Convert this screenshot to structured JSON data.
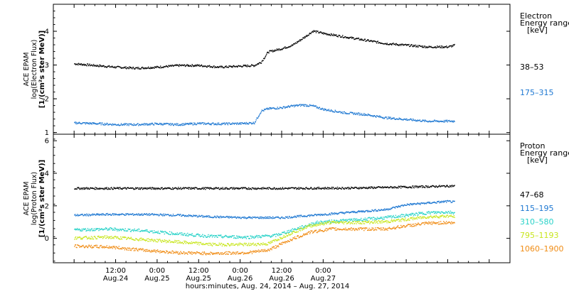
{
  "chart_data": [
    {
      "type": "scatter",
      "ylabel_lines": [
        "ACE EPAM",
        "log(Electron Flux)",
        "[1/(cm²s ster MeV)]"
      ],
      "legend_title": [
        "Electron",
        "Energy range",
        "[keV]"
      ],
      "ylim": [
        0.95,
        4.8
      ],
      "yticks": [
        1,
        2,
        3,
        4
      ],
      "series": [
        {
          "name": "38–53",
          "color": "#000000",
          "points": [
            [
              0,
              3.05
            ],
            [
              6,
              3.0
            ],
            [
              12,
              2.95
            ],
            [
              18,
              2.92
            ],
            [
              24,
              2.95
            ],
            [
              30,
              3.0
            ],
            [
              36,
              3.0
            ],
            [
              42,
              2.95
            ],
            [
              48,
              2.98
            ],
            [
              52,
              3.0
            ],
            [
              54,
              3.1
            ],
            [
              56,
              3.4
            ],
            [
              60,
              3.5
            ],
            [
              63,
              3.6
            ],
            [
              66,
              3.8
            ],
            [
              69,
              4.02
            ],
            [
              72,
              3.95
            ],
            [
              78,
              3.85
            ],
            [
              84,
              3.75
            ],
            [
              90,
              3.65
            ],
            [
              96,
              3.6
            ],
            [
              102,
              3.55
            ],
            [
              108,
              3.55
            ],
            [
              110,
              3.6
            ]
          ]
        },
        {
          "name": "175–315",
          "color": "#1e78d2",
          "points": [
            [
              0,
              1.3
            ],
            [
              6,
              1.28
            ],
            [
              12,
              1.25
            ],
            [
              18,
              1.25
            ],
            [
              24,
              1.27
            ],
            [
              30,
              1.25
            ],
            [
              36,
              1.28
            ],
            [
              42,
              1.27
            ],
            [
              48,
              1.28
            ],
            [
              52,
              1.3
            ],
            [
              54,
              1.65
            ],
            [
              56,
              1.72
            ],
            [
              60,
              1.75
            ],
            [
              63,
              1.8
            ],
            [
              66,
              1.83
            ],
            [
              69,
              1.8
            ],
            [
              72,
              1.7
            ],
            [
              78,
              1.6
            ],
            [
              84,
              1.55
            ],
            [
              90,
              1.45
            ],
            [
              96,
              1.4
            ],
            [
              102,
              1.35
            ],
            [
              108,
              1.35
            ],
            [
              110,
              1.35
            ]
          ]
        }
      ]
    },
    {
      "type": "scatter",
      "ylabel_lines": [
        "ACE EPAM",
        "log(Proton Flux)",
        "[1/(cm²s ster MeV)]"
      ],
      "legend_title": [
        "Proton",
        "Energy range",
        "[keV]"
      ],
      "ylim": [
        -1.5,
        6.4
      ],
      "yticks": [
        0,
        2,
        4,
        6
      ],
      "series": [
        {
          "name": "47–68",
          "color": "#000000",
          "points": [
            [
              0,
              3.1
            ],
            [
              20,
              3.1
            ],
            [
              40,
              3.1
            ],
            [
              60,
              3.1
            ],
            [
              80,
              3.12
            ],
            [
              100,
              3.2
            ],
            [
              110,
              3.25
            ]
          ]
        },
        {
          "name": "115–195",
          "color": "#1e78d2",
          "points": [
            [
              0,
              1.45
            ],
            [
              10,
              1.5
            ],
            [
              20,
              1.5
            ],
            [
              30,
              1.45
            ],
            [
              40,
              1.35
            ],
            [
              50,
              1.3
            ],
            [
              60,
              1.3
            ],
            [
              66,
              1.4
            ],
            [
              72,
              1.5
            ],
            [
              78,
              1.6
            ],
            [
              84,
              1.7
            ],
            [
              90,
              1.8
            ],
            [
              96,
              2.1
            ],
            [
              102,
              2.2
            ],
            [
              108,
              2.3
            ],
            [
              110,
              2.25
            ]
          ]
        },
        {
          "name": "310–580",
          "color": "#28d2c8",
          "points": [
            [
              0,
              0.55
            ],
            [
              10,
              0.6
            ],
            [
              20,
              0.5
            ],
            [
              30,
              0.3
            ],
            [
              40,
              0.15
            ],
            [
              50,
              0.1
            ],
            [
              58,
              0.2
            ],
            [
              64,
              0.6
            ],
            [
              70,
              1.0
            ],
            [
              76,
              1.1
            ],
            [
              84,
              1.2
            ],
            [
              90,
              1.3
            ],
            [
              96,
              1.45
            ],
            [
              102,
              1.6
            ],
            [
              108,
              1.65
            ],
            [
              110,
              1.6
            ]
          ]
        },
        {
          "name": "795–1193",
          "color": "#c8e61e",
          "points": [
            [
              0,
              0.05
            ],
            [
              10,
              0.1
            ],
            [
              20,
              -0.05
            ],
            [
              30,
              -0.2
            ],
            [
              40,
              -0.35
            ],
            [
              50,
              -0.35
            ],
            [
              56,
              -0.3
            ],
            [
              62,
              0.3
            ],
            [
              68,
              0.8
            ],
            [
              74,
              1.0
            ],
            [
              82,
              1.0
            ],
            [
              90,
              1.05
            ],
            [
              96,
              1.2
            ],
            [
              102,
              1.35
            ],
            [
              108,
              1.4
            ],
            [
              110,
              1.35
            ]
          ]
        },
        {
          "name": "1060–1900",
          "color": "#f08c14",
          "points": [
            [
              0,
              -0.45
            ],
            [
              10,
              -0.5
            ],
            [
              20,
              -0.7
            ],
            [
              30,
              -0.85
            ],
            [
              40,
              -0.9
            ],
            [
              50,
              -0.85
            ],
            [
              56,
              -0.7
            ],
            [
              62,
              -0.1
            ],
            [
              68,
              0.4
            ],
            [
              74,
              0.6
            ],
            [
              82,
              0.6
            ],
            [
              90,
              0.6
            ],
            [
              96,
              0.8
            ],
            [
              102,
              0.95
            ],
            [
              108,
              1.0
            ],
            [
              110,
              0.95
            ]
          ]
        }
      ]
    }
  ],
  "x_axis": {
    "range_hours": [
      -6,
      126
    ],
    "ticks": [
      {
        "hour": 12,
        "time": "12:00",
        "date": "Aug.24"
      },
      {
        "hour": 24,
        "time": "0:00",
        "date": "Aug.25"
      },
      {
        "hour": 36,
        "time": "12:00",
        "date": "Aug.25"
      },
      {
        "hour": 48,
        "time": "0:00",
        "date": "Aug.26"
      },
      {
        "hour": 60,
        "time": "12:00",
        "date": "Aug.26"
      },
      {
        "hour": 72,
        "time": "0:00",
        "date": "Aug.27"
      }
    ],
    "xlabel": "hours:minutes, Aug. 24, 2014 – Aug. 27, 2014"
  }
}
